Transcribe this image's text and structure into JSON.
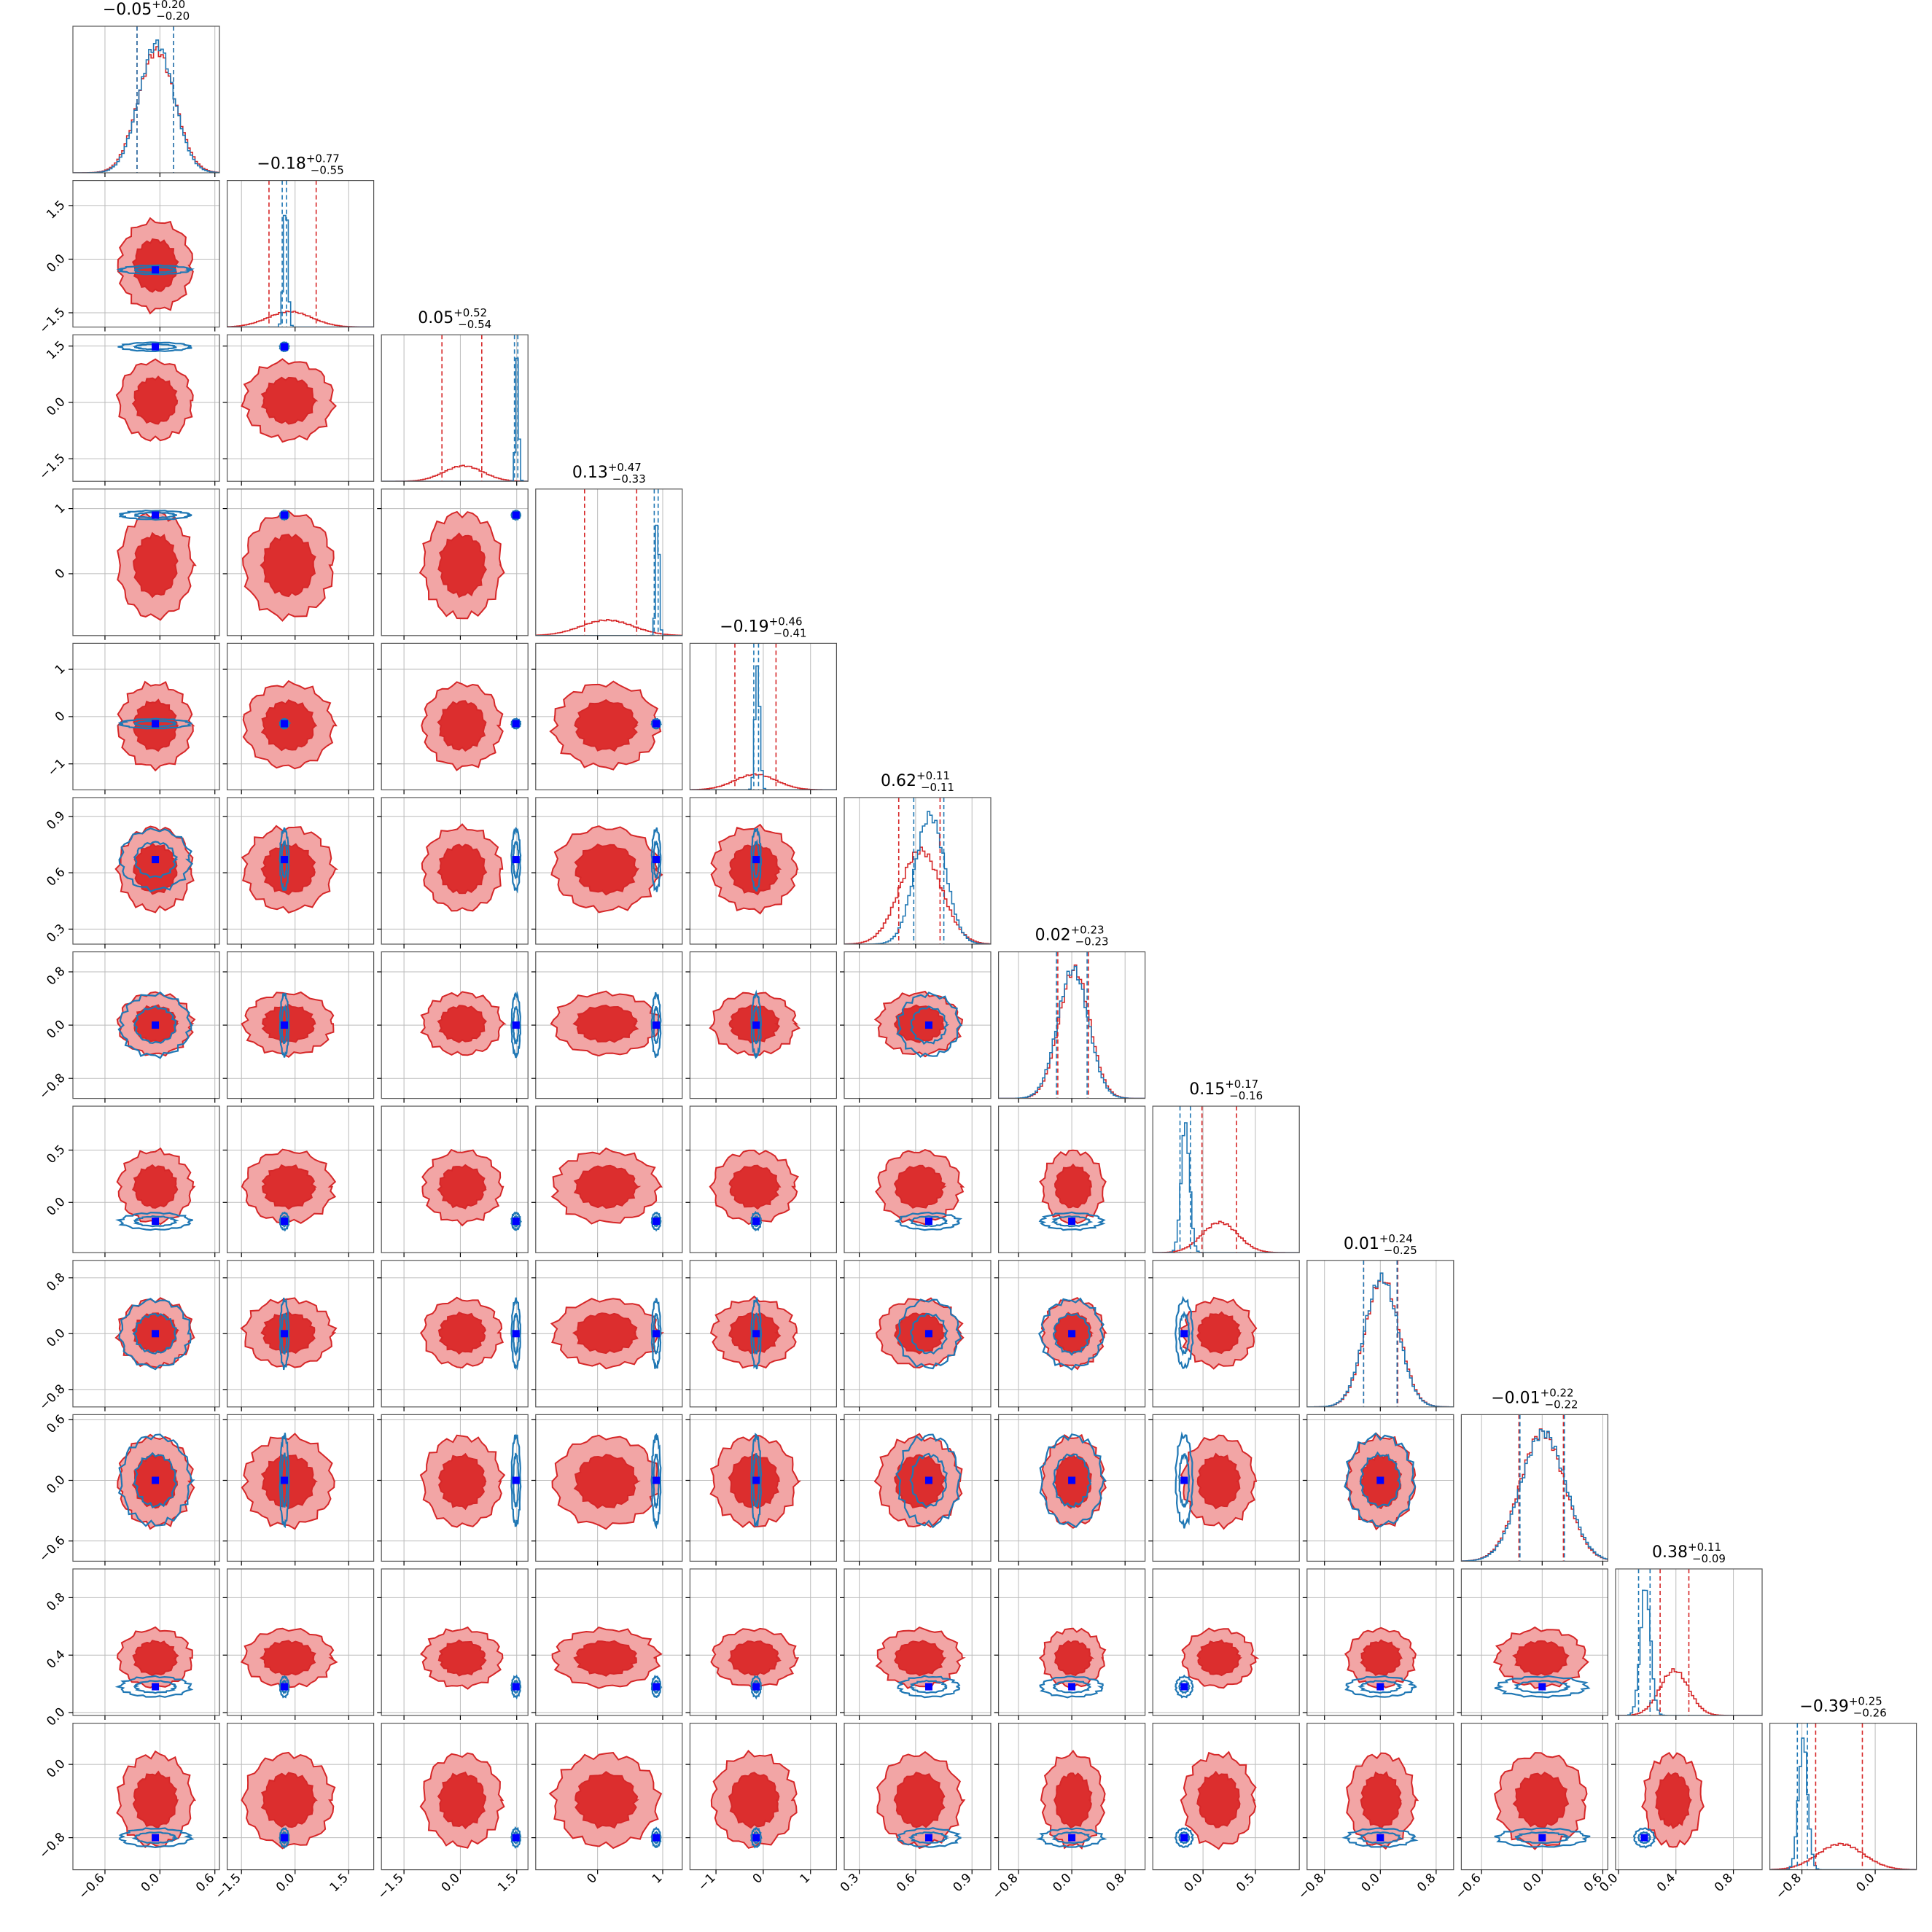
{
  "chart_data": {
    "type": "corner",
    "colors": {
      "posterior_a": "#d62728",
      "posterior_b": "#1f77b4",
      "truth_marker": "#0000ff",
      "grid": "#bbbbbb",
      "frame": "#555555"
    },
    "series": [
      {
        "color": "#d62728",
        "style": "filled contours + histogram"
      },
      {
        "color": "#1f77b4",
        "style": "line contours + histogram"
      }
    ],
    "panel_titles": [
      {
        "median": "−0.05",
        "plus": "+0.20",
        "minus": "−0.20"
      },
      {
        "median": "−0.18",
        "plus": "+0.77",
        "minus": "−0.55"
      },
      {
        "median": "0.05",
        "plus": "+0.52",
        "minus": "−0.54"
      },
      {
        "median": "0.13",
        "plus": "+0.47",
        "minus": "−0.33"
      },
      {
        "median": "−0.19",
        "plus": "+0.46",
        "minus": "−0.41"
      },
      {
        "median": "0.62",
        "plus": "+0.11",
        "minus": "−0.11"
      },
      {
        "median": "0.02",
        "plus": "+0.23",
        "minus": "−0.23"
      },
      {
        "median": "0.15",
        "plus": "+0.17",
        "minus": "−0.16"
      },
      {
        "median": "0.01",
        "plus": "+0.24",
        "minus": "−0.25"
      },
      {
        "median": "−0.01",
        "plus": "+0.22",
        "minus": "−0.22"
      },
      {
        "median": "0.38",
        "plus": "+0.11",
        "minus": "−0.09"
      },
      {
        "median": "−0.39",
        "plus": "+0.25",
        "minus": "−0.26"
      }
    ],
    "parameters": [
      {
        "range": [
          -0.95,
          0.65
        ],
        "ticks": [
          -0.6,
          0.0,
          0.6
        ],
        "tick_labels": [
          "−0.6",
          "0.0",
          "0.6"
        ],
        "a": {
          "median": -0.05,
          "lo": -0.25,
          "hi": 0.15,
          "sd": 0.2
        },
        "b": {
          "median": -0.05,
          "lo": -0.25,
          "hi": 0.15,
          "sd": 0.19
        }
      },
      {
        "range": [
          -1.9,
          2.2
        ],
        "ticks": [
          -1.5,
          0.0,
          1.5
        ],
        "tick_labels": [
          "−1.5",
          "0.0",
          "1.5"
        ],
        "a": {
          "median": -0.18,
          "lo": -0.73,
          "hi": 0.59,
          "sd": 0.62
        },
        "b": {
          "median": -0.3,
          "lo": -0.36,
          "hi": -0.24,
          "sd": 0.06
        }
      },
      {
        "range": [
          -2.1,
          1.8
        ],
        "ticks": [
          -1.5,
          0.0,
          1.5
        ],
        "tick_labels": [
          "−1.5",
          "0.0",
          "1.5"
        ],
        "a": {
          "median": 0.05,
          "lo": -0.49,
          "hi": 0.57,
          "sd": 0.52
        },
        "b": {
          "median": 1.48,
          "lo": 1.44,
          "hi": 1.53,
          "sd": 0.04
        }
      },
      {
        "range": [
          -0.95,
          1.3
        ],
        "ticks": [
          0,
          1
        ],
        "tick_labels": [
          "0",
          "1"
        ],
        "a": {
          "median": 0.13,
          "lo": -0.2,
          "hi": 0.6,
          "sd": 0.4
        },
        "b": {
          "median": 0.9,
          "lo": 0.87,
          "hi": 0.93,
          "sd": 0.025
        }
      },
      {
        "range": [
          -1.55,
          1.55
        ],
        "ticks": [
          -1,
          0,
          1
        ],
        "tick_labels": [
          "−1",
          "0",
          "1"
        ],
        "a": {
          "median": -0.19,
          "lo": -0.6,
          "hi": 0.27,
          "sd": 0.44
        },
        "b": {
          "median": -0.15,
          "lo": -0.2,
          "hi": -0.1,
          "sd": 0.05
        }
      },
      {
        "range": [
          0.22,
          1.0
        ],
        "ticks": [
          0.3,
          0.6,
          0.9
        ],
        "tick_labels": [
          "0.3",
          "0.6",
          "0.9"
        ],
        "a": {
          "median": 0.62,
          "lo": 0.51,
          "hi": 0.73,
          "sd": 0.11
        },
        "b": {
          "median": 0.67,
          "lo": 0.59,
          "hi": 0.75,
          "sd": 0.08
        }
      },
      {
        "range": [
          -1.1,
          1.1
        ],
        "ticks": [
          -0.8,
          0.0,
          0.8
        ],
        "tick_labels": [
          "−0.8",
          "0.0",
          "0.8"
        ],
        "a": {
          "median": 0.02,
          "lo": -0.21,
          "hi": 0.25,
          "sd": 0.23
        },
        "b": {
          "median": 0.0,
          "lo": -0.23,
          "hi": 0.23,
          "sd": 0.23
        }
      },
      {
        "range": [
          -0.48,
          0.92
        ],
        "ticks": [
          0.0,
          0.5
        ],
        "tick_labels": [
          "0.0",
          "0.5"
        ],
        "a": {
          "median": 0.15,
          "lo": -0.01,
          "hi": 0.32,
          "sd": 0.17
        },
        "b": {
          "median": -0.18,
          "lo": -0.22,
          "hi": -0.12,
          "sd": 0.04
        }
      },
      {
        "range": [
          -1.05,
          1.05
        ],
        "ticks": [
          -0.8,
          0.0,
          0.8
        ],
        "tick_labels": [
          "−0.8",
          "0.0",
          "0.8"
        ],
        "a": {
          "median": 0.01,
          "lo": -0.24,
          "hi": 0.25,
          "sd": 0.24
        },
        "b": {
          "median": 0.0,
          "lo": -0.24,
          "hi": 0.24,
          "sd": 0.24
        }
      },
      {
        "range": [
          -0.8,
          0.65
        ],
        "ticks": [
          -0.6,
          0.0,
          0.6
        ],
        "tick_labels": [
          "−0.6",
          "0.0",
          "0.6"
        ],
        "a": {
          "median": -0.01,
          "lo": -0.23,
          "hi": 0.21,
          "sd": 0.22
        },
        "b": {
          "median": 0.0,
          "lo": -0.22,
          "hi": 0.22,
          "sd": 0.22
        }
      },
      {
        "range": [
          -0.02,
          1.0
        ],
        "ticks": [
          0.0,
          0.4,
          0.8
        ],
        "tick_labels": [
          "0.0",
          "0.4",
          "0.8"
        ],
        "a": {
          "median": 0.38,
          "lo": 0.29,
          "hi": 0.49,
          "sd": 0.1
        },
        "b": {
          "median": 0.18,
          "lo": 0.14,
          "hi": 0.22,
          "sd": 0.035
        }
      },
      {
        "range": [
          -1.15,
          0.45
        ],
        "ticks": [
          -0.8,
          0.0
        ],
        "tick_labels": [
          "−0.8",
          "0.0"
        ],
        "a": {
          "median": -0.39,
          "lo": -0.65,
          "hi": -0.14,
          "sd": 0.25
        },
        "b": {
          "median": -0.8,
          "lo": -0.85,
          "hi": -0.74,
          "sd": 0.05
        }
      }
    ],
    "grid": true
  }
}
